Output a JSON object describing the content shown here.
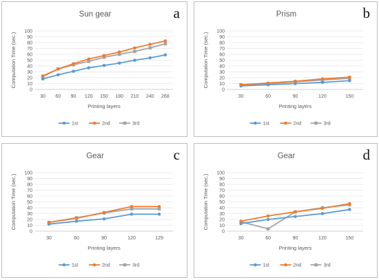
{
  "colors": {
    "1st": "#5b9bd5",
    "2nd": "#ed7d31",
    "3rd": "#a5a5a5",
    "grid": "#e4e4e4",
    "axis": "#bfbfbf",
    "text": "#595959"
  },
  "chart_data": [
    {
      "type": "line",
      "panel_letter": "a",
      "title": "Sun gear",
      "xlabel": "Printing layers",
      "ylabel": "Computation Time (sec.)",
      "categories": [
        "30",
        "60",
        "90",
        "120",
        "150",
        "180",
        "210",
        "240",
        "268"
      ],
      "ylim": [
        0,
        100
      ],
      "yticks": [
        "0",
        "10",
        "20",
        "30",
        "40",
        "50",
        "60",
        "70",
        "80",
        "90",
        "100"
      ],
      "grid": true,
      "legend": "bottom",
      "series": [
        {
          "name": "1st",
          "values": [
            18,
            25,
            31,
            37,
            41,
            45,
            50,
            54,
            59
          ]
        },
        {
          "name": "2nd",
          "values": [
            23,
            35,
            44,
            52,
            58,
            64,
            71,
            77,
            83
          ]
        },
        {
          "name": "3rd",
          "values": [
            22,
            35,
            42,
            48,
            55,
            60,
            65,
            71,
            78
          ]
        }
      ]
    },
    {
      "type": "line",
      "panel_letter": "b",
      "title": "Prism",
      "xlabel": "Printing layers",
      "ylabel": "Computation Time (sec.)",
      "categories": [
        "30",
        "60",
        "90",
        "120",
        "150"
      ],
      "ylim": [
        0,
        100
      ],
      "yticks": [
        "0",
        "10",
        "20",
        "30",
        "40",
        "50",
        "60",
        "70",
        "80",
        "90",
        "100"
      ],
      "grid": true,
      "legend": "bottom",
      "series": [
        {
          "name": "1st",
          "values": [
            6,
            8,
            10,
            12,
            15
          ]
        },
        {
          "name": "2nd",
          "values": [
            8,
            11,
            14,
            18,
            21
          ]
        },
        {
          "name": "3rd",
          "values": [
            8,
            10,
            13,
            16,
            19
          ]
        }
      ]
    },
    {
      "type": "line",
      "panel_letter": "c",
      "title": "Gear",
      "xlabel": "Printing layers",
      "ylabel": "Computation Time (sec.)",
      "categories": [
        "30",
        "60",
        "90",
        "120",
        "129"
      ],
      "ylim": [
        0,
        100
      ],
      "yticks": [
        "0",
        "10",
        "20",
        "30",
        "40",
        "50",
        "60",
        "70",
        "80",
        "90",
        "100"
      ],
      "grid": true,
      "legend": "bottom",
      "series": [
        {
          "name": "1st",
          "values": [
            12,
            17,
            21,
            29,
            29
          ]
        },
        {
          "name": "2nd",
          "values": [
            15,
            22,
            32,
            42,
            42
          ]
        },
        {
          "name": "3rd",
          "values": [
            15,
            23,
            31,
            38,
            38
          ]
        }
      ]
    },
    {
      "type": "line",
      "panel_letter": "d",
      "title": "Gear",
      "xlabel": "Printing layers",
      "ylabel": "Computation Time (sec.)",
      "categories": [
        "30",
        "60",
        "90",
        "120",
        "150"
      ],
      "ylim": [
        0,
        100
      ],
      "yticks": [
        "0",
        "10",
        "20",
        "30",
        "40",
        "50",
        "60",
        "70",
        "80",
        "90",
        "100"
      ],
      "grid": true,
      "legend": "bottom",
      "series": [
        {
          "name": "1st",
          "values": [
            13,
            20,
            25,
            30,
            37
          ]
        },
        {
          "name": "2nd",
          "values": [
            17,
            26,
            33,
            39,
            47
          ]
        },
        {
          "name": "3rd",
          "values": [
            16,
            4,
            33,
            40,
            45
          ]
        }
      ]
    }
  ]
}
